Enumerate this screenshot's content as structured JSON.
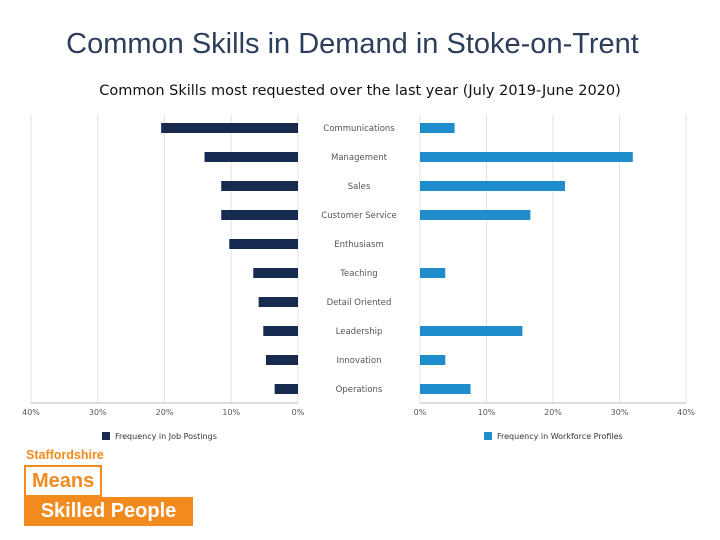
{
  "page": {
    "title": "Common Skills in Demand in Stoke-on-Trent"
  },
  "logo": {
    "line1": "Staffordshire",
    "line2": "Means",
    "line3": "Skilled People",
    "color": "#f28a1e"
  },
  "chart_data": {
    "type": "bar",
    "orientation": "horizontal-butterfly",
    "title": "Common Skills most requested over the last year (July 2019-June 2020)",
    "categories": [
      "Communications",
      "Management",
      "Sales",
      "Customer Service",
      "Enthusiasm",
      "Teaching",
      "Detail Oriented",
      "Leadership",
      "Innovation",
      "Operations"
    ],
    "series": [
      {
        "name": "Frequency in Job Postings",
        "color": "#172a4f",
        "side": "left",
        "values": [
          20.5,
          14,
          11.5,
          11.5,
          10.3,
          6.7,
          5.9,
          5.2,
          4.8,
          3.5
        ],
        "xlim": [
          0,
          40
        ],
        "ticks": [
          "40%",
          "30%",
          "20%",
          "10%",
          "0%"
        ]
      },
      {
        "name": "Frequency in Workforce Profiles",
        "color": "#1f8ccb",
        "side": "right",
        "values": [
          5.2,
          32,
          21.8,
          16.6,
          0,
          3.8,
          0,
          15.4,
          3.8,
          7.6
        ],
        "xlim": [
          0,
          40
        ],
        "ticks": [
          "0%",
          "10%",
          "20%",
          "30%",
          "40%"
        ]
      }
    ],
    "legend_position": "bottom"
  }
}
